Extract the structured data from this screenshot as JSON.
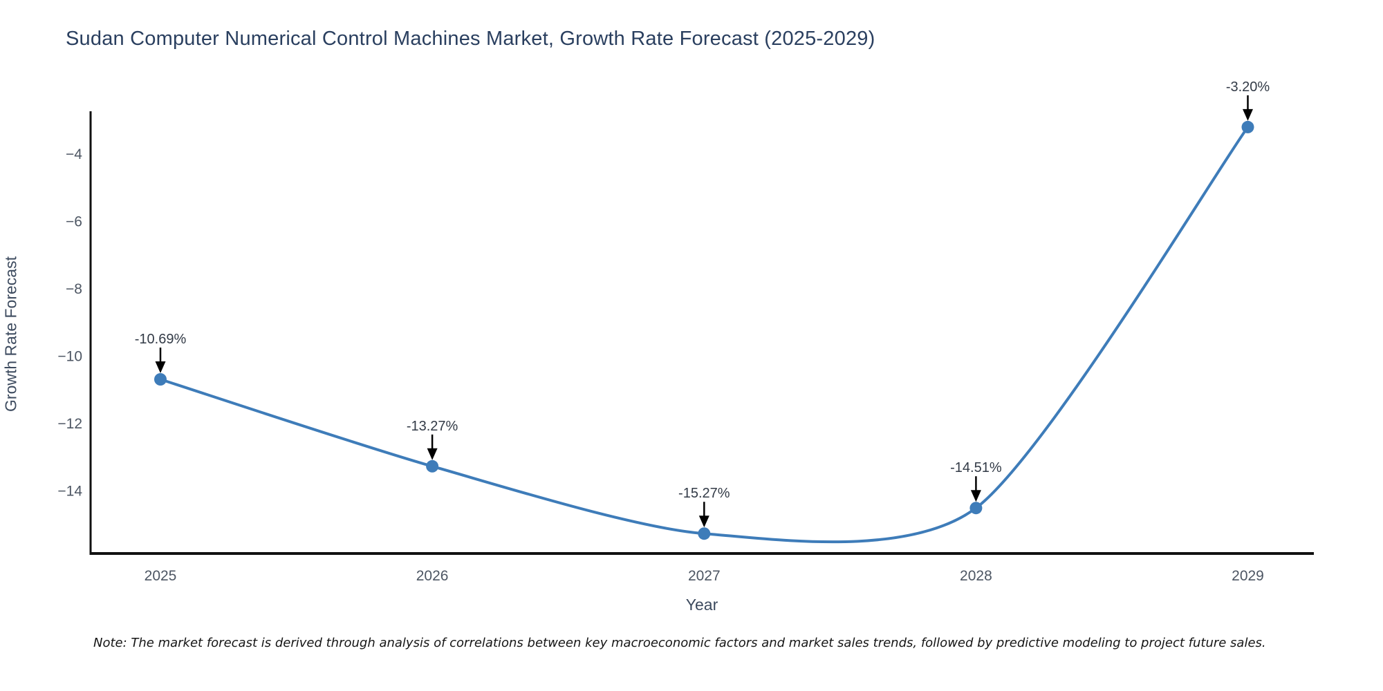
{
  "title": "Sudan Computer Numerical Control Machines Market, Growth Rate Forecast (2025-2029)",
  "note": "Note: The market forecast is derived through analysis of correlations between key macroeconomic factors and market sales trends, followed by predictive modeling to project future sales.",
  "chart_data": {
    "type": "line",
    "title": "Sudan Computer Numerical Control Machines Market, Growth Rate Forecast (2025-2029)",
    "xlabel": "Year",
    "ylabel": "Growth Rate Forecast",
    "x": [
      2025,
      2026,
      2027,
      2028,
      2029
    ],
    "values": [
      -10.69,
      -13.27,
      -15.27,
      -14.51,
      -3.2
    ],
    "point_labels": [
      "-10.69%",
      "-13.27%",
      "-15.27%",
      "-14.51%",
      "-3.20%"
    ],
    "xtick_labels": [
      "2025",
      "2026",
      "2027",
      "2028",
      "2029"
    ],
    "ytick_values": [
      -4,
      -6,
      -8,
      -10,
      -12,
      -14
    ],
    "ytick_labels": [
      "−4",
      "−6",
      "−8",
      "−10",
      "−12",
      "−14"
    ],
    "xlim": [
      2024.743,
      2029.243
    ],
    "ylim": [
      -15.86,
      -2.73
    ],
    "line_shape": "spline",
    "grid": false,
    "legend": "none",
    "line_color": "#3e7cb9",
    "marker_color": "#3e7cb9",
    "axis_color": "#111111",
    "annotation_arrow_color": "#000000"
  }
}
